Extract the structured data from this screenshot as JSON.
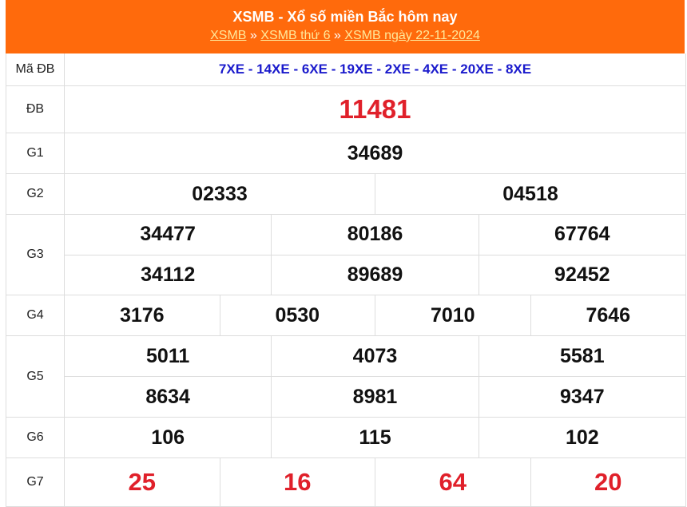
{
  "header": {
    "title": "XSMB - Xổ số miền Bắc hôm nay",
    "breadcrumb": [
      "XSMB",
      "XSMB thứ 6",
      "XSMB ngày 22-11-2024"
    ],
    "separator": "»"
  },
  "colors": {
    "header_bg": "#ff6a0c",
    "special": "#e0202a",
    "code": "#1a1acc"
  },
  "rows": [
    {
      "label": "Mã ĐB",
      "values": [
        "7XE - 14XE - 6XE - 19XE - 2XE - 4XE - 20XE - 8XE"
      ]
    },
    {
      "label": "ĐB",
      "values": [
        "11481"
      ]
    },
    {
      "label": "G1",
      "values": [
        "34689"
      ]
    },
    {
      "label": "G2",
      "values": [
        "02333",
        "04518"
      ]
    },
    {
      "label": "G3",
      "values": [
        "34477",
        "80186",
        "67764",
        "34112",
        "89689",
        "92452"
      ]
    },
    {
      "label": "G4",
      "values": [
        "3176",
        "0530",
        "7010",
        "7646"
      ]
    },
    {
      "label": "G5",
      "values": [
        "5011",
        "4073",
        "5581",
        "8634",
        "8981",
        "9347"
      ]
    },
    {
      "label": "G6",
      "values": [
        "106",
        "115",
        "102"
      ]
    },
    {
      "label": "G7",
      "values": [
        "25",
        "16",
        "64",
        "20"
      ]
    }
  ]
}
